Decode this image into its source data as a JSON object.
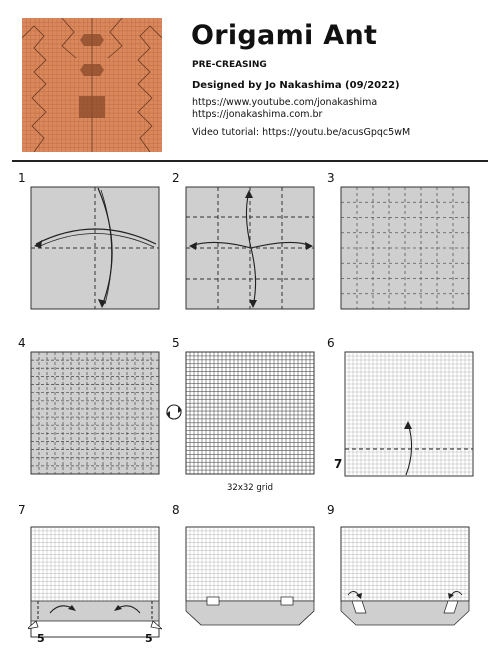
{
  "header": {
    "title": "Origami Ant",
    "subtitle": "PRE-CREASING",
    "designer": "Designed by Jo Nakashima (09/2022)",
    "link_youtube": "https://www.youtube.com/jonakashima",
    "link_site": "https://jonakashima.com.br",
    "video_tutorial": "Video tutorial: https://youtu.be/acusGpqc5wM"
  },
  "colors": {
    "cp_paper": "#d9875c",
    "paper_gray": "#cfcfcf",
    "paper_white": "#ffffff",
    "rule": "#222222"
  },
  "steps": [
    {
      "number": "1"
    },
    {
      "number": "2"
    },
    {
      "number": "3"
    },
    {
      "number": "4"
    },
    {
      "number": "5",
      "caption": "32x32 grid"
    },
    {
      "number": "6",
      "mark": "7"
    },
    {
      "number": "7",
      "mark_left": "5",
      "mark_right": "5"
    },
    {
      "number": "8"
    },
    {
      "number": "9"
    }
  ]
}
